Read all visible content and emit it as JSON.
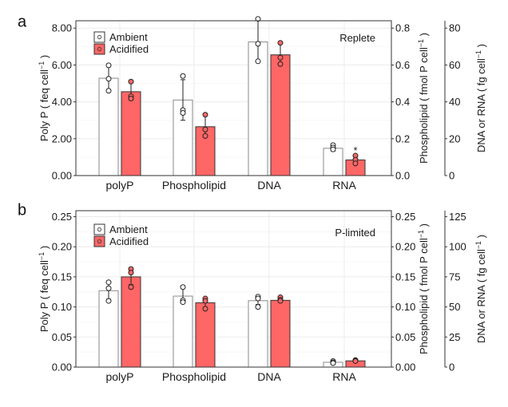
{
  "chart_data": [
    {
      "type": "bar",
      "panel_label": "a",
      "annotation": "Replete",
      "categories": [
        "polyP",
        "Phospholipid",
        "DNA",
        "RNA"
      ],
      "legend": [
        "Ambient",
        "Acidified"
      ],
      "legend_position": "top-left",
      "colors": {
        "Ambient": "#ffffff",
        "Acidified": "#ff6666"
      },
      "y_axes": [
        {
          "side": "left",
          "label": "Poly P ( feq cell",
          "sup": "−1",
          "label_end": " )",
          "range": [
            0,
            8.4
          ],
          "ticks": [
            0,
            2,
            4,
            6,
            8
          ],
          "tick_labels": [
            "0.00",
            "2.00",
            "4.00",
            "6.00",
            "8.00"
          ],
          "applies_to": [
            "polyP"
          ]
        },
        {
          "side": "right",
          "label": "Phospholipid ( fmol P cell",
          "sup": "−1",
          "label_end": " )",
          "range": [
            0,
            0.84
          ],
          "ticks": [
            0,
            0.2,
            0.4,
            0.6,
            0.8
          ],
          "tick_labels": [
            "0.0",
            "0.2",
            "0.4",
            "0.6",
            "0.8"
          ],
          "applies_to": [
            "Phospholipid"
          ]
        },
        {
          "side": "right-outer",
          "label": "DNA or RNA ( fg cell",
          "sup": "−1",
          "label_end": " )",
          "range": [
            0,
            84
          ],
          "ticks": [
            0,
            20,
            40,
            60,
            80
          ],
          "tick_labels": [
            "0",
            "20",
            "40",
            "60",
            "80"
          ],
          "applies_to": [
            "DNA",
            "RNA"
          ]
        }
      ],
      "series": [
        {
          "name": "Ambient",
          "values": [
            5.28,
            0.41,
            72.5,
            14.8
          ],
          "err_low": [
            4.6,
            0.3,
            62,
            13.3
          ],
          "err_high": [
            5.98,
            0.52,
            85,
            16.3
          ],
          "points": [
            [
              5.98,
              5.25,
              4.6
            ],
            [
              0.54,
              0.355,
              0.34
            ],
            [
              85,
              71.5,
              62
            ],
            [
              16.5,
              15.2,
              14.2
            ]
          ]
        },
        {
          "name": "Acidified",
          "values": [
            4.55,
            0.265,
            65.5,
            8.5
          ],
          "err_low": [
            4.1,
            0.21,
            60,
            6.2
          ],
          "err_high": [
            5.1,
            0.33,
            72,
            10.8
          ],
          "points": [
            [
              5.1,
              4.3,
              4.18
            ],
            [
              0.33,
              0.25,
              0.215
            ],
            [
              72,
              64,
              60.5
            ],
            [
              10.8,
              8.6,
              6.6
            ]
          ]
        }
      ],
      "significance": [
        {
          "category": "RNA",
          "series": "Acidified",
          "mark": "*"
        }
      ]
    },
    {
      "type": "bar",
      "panel_label": "b",
      "annotation": "P-limited",
      "categories": [
        "polyP",
        "Phospholipid",
        "DNA",
        "RNA"
      ],
      "legend": [
        "Ambient",
        "Acidified"
      ],
      "legend_position": "top-left",
      "colors": {
        "Ambient": "#ffffff",
        "Acidified": "#ff6666"
      },
      "y_axes": [
        {
          "side": "left",
          "label": "Poly P ( feq cell",
          "sup": "−1",
          "label_end": " )",
          "range": [
            0,
            0.26
          ],
          "ticks": [
            0,
            0.05,
            0.1,
            0.15,
            0.2,
            0.25
          ],
          "tick_labels": [
            "0.00",
            "0.05",
            "0.10",
            "0.15",
            "0.20",
            "0.25"
          ],
          "applies_to": [
            "polyP"
          ]
        },
        {
          "side": "right",
          "label": "Phospholipid ( fmol P cell",
          "sup": "−1",
          "label_end": " )",
          "range": [
            0,
            0.26
          ],
          "ticks": [
            0,
            0.05,
            0.1,
            0.15,
            0.2,
            0.25
          ],
          "tick_labels": [
            "0.00",
            "0.05",
            "0.10",
            "0.15",
            "0.20",
            "0.25"
          ],
          "applies_to": [
            "Phospholipid"
          ]
        },
        {
          "side": "right-outer",
          "label": "DNA or RNA ( fg cell",
          "sup": "−1",
          "label_end": " )",
          "range": [
            0,
            130
          ],
          "ticks": [
            0,
            25,
            50,
            75,
            100,
            125
          ],
          "tick_labels": [
            "0",
            "25",
            "50",
            "75",
            "100",
            "125"
          ],
          "applies_to": [
            "DNA",
            "RNA"
          ]
        }
      ],
      "series": [
        {
          "name": "Ambient",
          "values": [
            0.127,
            0.118,
            55.2,
            4.0
          ],
          "err_low": [
            0.113,
            0.107,
            52,
            3.0
          ],
          "err_high": [
            0.141,
            0.133,
            58.5,
            5.0
          ],
          "points": [
            [
              0.141,
              0.131,
              0.11
            ],
            [
              0.133,
              0.111,
              0.108
            ],
            [
              58.5,
              57,
              50
            ],
            [
              5.0,
              4.0,
              3.3
            ]
          ]
        },
        {
          "name": "Acidified",
          "values": [
            0.15,
            0.107,
            55.5,
            5.2
          ],
          "err_low": [
            0.137,
            0.099,
            54,
            4.7
          ],
          "err_high": [
            0.163,
            0.114,
            58,
            5.8
          ],
          "points": [
            [
              0.163,
              0.157,
              0.133
            ],
            [
              0.114,
              0.11,
              0.097
            ],
            [
              58,
              56,
              55
            ],
            [
              5.8,
              5.4,
              5.0
            ]
          ]
        }
      ],
      "significance": []
    }
  ]
}
